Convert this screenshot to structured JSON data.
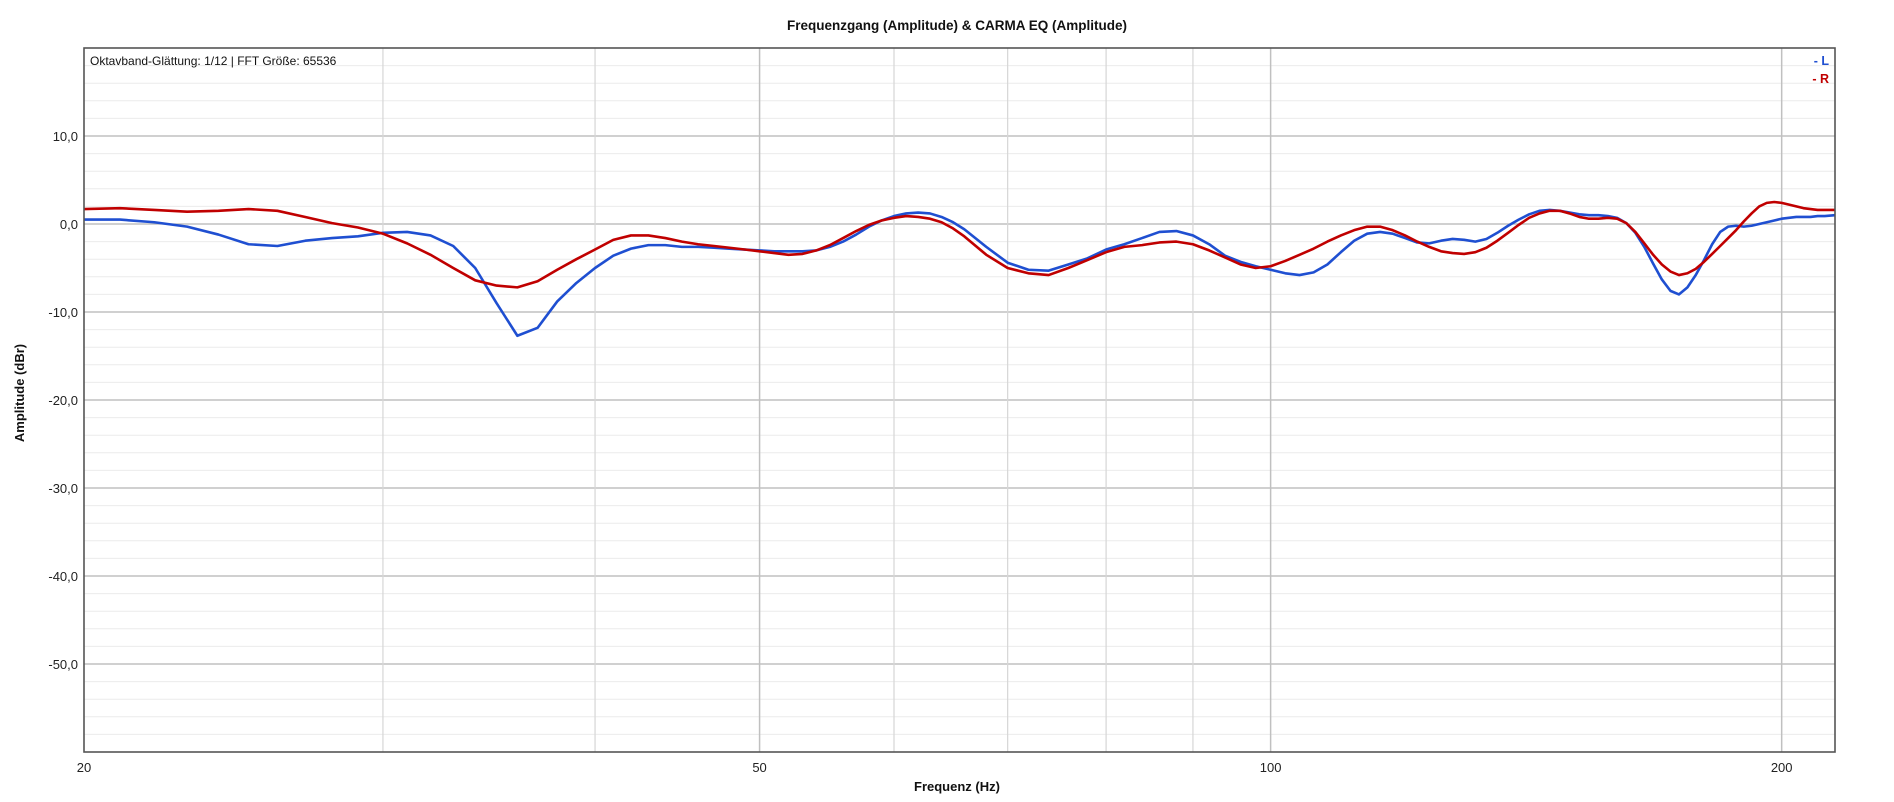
{
  "chart_data": {
    "type": "line",
    "title": "Frequenzgang (Amplitude) & CARMA EQ (Amplitude)",
    "info_text": "Oktavband-Glättung: 1/12 | FFT Größe: 65536",
    "xlabel": "Frequenz (Hz)",
    "ylabel": "Amplitude (dBr)",
    "x_scale": "log",
    "xlim": [
      20,
      215
    ],
    "ylim": [
      -60,
      20
    ],
    "x_ticks": [
      {
        "value": 20,
        "label": "20"
      },
      {
        "value": 50,
        "label": "50"
      },
      {
        "value": 100,
        "label": "100"
      },
      {
        "value": 200,
        "label": "200"
      }
    ],
    "y_ticks": [
      {
        "value": 10,
        "label": "10,0"
      },
      {
        "value": 0,
        "label": "0,0"
      },
      {
        "value": -10,
        "label": "-10,0"
      },
      {
        "value": -20,
        "label": "-20,0"
      },
      {
        "value": -30,
        "label": "-30,0"
      },
      {
        "value": -40,
        "label": "-40,0"
      },
      {
        "value": -50,
        "label": "-50,0"
      }
    ],
    "grid": true,
    "legend_position": "top-right",
    "series": [
      {
        "name": "L",
        "legend_label": "- L",
        "color": "#1f4fd1",
        "x": [
          20,
          21,
          22,
          23,
          24,
          25,
          26,
          27,
          28,
          29,
          30,
          31,
          32,
          33,
          34,
          35,
          36,
          37,
          38,
          39,
          40,
          41,
          42,
          43,
          44,
          45,
          46,
          47,
          48,
          49,
          50,
          51,
          52,
          53,
          54,
          55,
          56,
          57,
          58,
          59,
          60,
          61,
          62,
          63,
          64,
          65,
          66,
          68,
          70,
          72,
          74,
          76,
          78,
          80,
          82,
          84,
          86,
          88,
          90,
          92,
          94,
          96,
          98,
          100,
          102,
          104,
          106,
          108,
          110,
          112,
          114,
          116,
          118,
          120,
          122,
          124,
          126,
          128,
          130,
          132,
          134,
          136,
          138,
          140,
          142,
          144,
          146,
          148,
          150,
          152,
          154,
          156,
          158,
          160,
          162,
          164,
          166,
          168,
          170,
          172,
          174,
          176,
          178,
          180,
          182,
          184,
          186,
          188,
          190,
          192,
          194,
          196,
          198,
          200,
          202,
          204,
          206,
          208,
          210,
          212,
          215
        ],
        "values": [
          0.5,
          0.5,
          0.2,
          -0.3,
          -1.2,
          -2.3,
          -2.5,
          -1.9,
          -1.6,
          -1.4,
          -1.0,
          -0.9,
          -1.3,
          -2.5,
          -5.0,
          -9.0,
          -12.7,
          -11.8,
          -8.8,
          -6.7,
          -5.0,
          -3.6,
          -2.8,
          -2.4,
          -2.4,
          -2.6,
          -2.6,
          -2.7,
          -2.8,
          -2.9,
          -3.0,
          -3.1,
          -3.1,
          -3.1,
          -3.0,
          -2.6,
          -2.0,
          -1.2,
          -0.3,
          0.4,
          0.9,
          1.2,
          1.3,
          1.2,
          0.8,
          0.2,
          -0.6,
          -2.6,
          -4.4,
          -5.2,
          -5.3,
          -4.6,
          -3.9,
          -2.9,
          -2.3,
          -1.6,
          -0.9,
          -0.8,
          -1.3,
          -2.3,
          -3.6,
          -4.3,
          -4.8,
          -5.2,
          -5.6,
          -5.8,
          -5.5,
          -4.6,
          -3.2,
          -1.9,
          -1.1,
          -0.9,
          -1.1,
          -1.6,
          -2.1,
          -2.2,
          -1.9,
          -1.7,
          -1.8,
          -2.0,
          -1.7,
          -1.0,
          -0.2,
          0.5,
          1.1,
          1.5,
          1.6,
          1.5,
          1.3,
          1.1,
          1.0,
          1.0,
          0.9,
          0.7,
          0.1,
          -1.0,
          -2.6,
          -4.5,
          -6.3,
          -7.6,
          -8.0,
          -7.2,
          -5.8,
          -4.1,
          -2.3,
          -0.9,
          -0.3,
          -0.2,
          -0.3,
          -0.2,
          0.0,
          0.2,
          0.4,
          0.6,
          0.7,
          0.8,
          0.8,
          0.8,
          0.9,
          0.9,
          1.0
        ]
      },
      {
        "name": "R",
        "legend_label": "- R",
        "color": "#c00000",
        "x": [
          20,
          21,
          22,
          23,
          24,
          25,
          26,
          27,
          28,
          29,
          30,
          31,
          32,
          33,
          34,
          35,
          36,
          37,
          38,
          39,
          40,
          41,
          42,
          43,
          44,
          45,
          46,
          47,
          48,
          49,
          50,
          51,
          52,
          53,
          54,
          55,
          56,
          57,
          58,
          59,
          60,
          61,
          62,
          63,
          64,
          65,
          66,
          68,
          70,
          72,
          74,
          76,
          78,
          80,
          82,
          84,
          86,
          88,
          90,
          92,
          94,
          96,
          98,
          100,
          102,
          104,
          106,
          108,
          110,
          112,
          114,
          116,
          118,
          120,
          122,
          124,
          126,
          128,
          130,
          132,
          134,
          136,
          138,
          140,
          142,
          144,
          146,
          148,
          150,
          152,
          154,
          156,
          158,
          160,
          162,
          164,
          166,
          168,
          170,
          172,
          174,
          176,
          178,
          180,
          182,
          184,
          186,
          188,
          190,
          192,
          194,
          196,
          198,
          200,
          202,
          204,
          206,
          208,
          210,
          212,
          215
        ],
        "values": [
          1.7,
          1.8,
          1.6,
          1.4,
          1.5,
          1.7,
          1.5,
          0.8,
          0.1,
          -0.4,
          -1.1,
          -2.2,
          -3.5,
          -5.0,
          -6.4,
          -7.0,
          -7.2,
          -6.5,
          -5.2,
          -4.0,
          -2.9,
          -1.8,
          -1.3,
          -1.3,
          -1.6,
          -2.0,
          -2.3,
          -2.5,
          -2.7,
          -2.9,
          -3.1,
          -3.3,
          -3.5,
          -3.4,
          -3.0,
          -2.4,
          -1.6,
          -0.8,
          -0.1,
          0.4,
          0.7,
          0.9,
          0.8,
          0.6,
          0.2,
          -0.5,
          -1.4,
          -3.5,
          -5.0,
          -5.6,
          -5.8,
          -5.0,
          -4.1,
          -3.2,
          -2.6,
          -2.4,
          -2.1,
          -2.0,
          -2.3,
          -3.0,
          -3.8,
          -4.6,
          -5.0,
          -4.8,
          -4.2,
          -3.5,
          -2.8,
          -2.0,
          -1.3,
          -0.7,
          -0.3,
          -0.3,
          -0.7,
          -1.3,
          -2.0,
          -2.6,
          -3.1,
          -3.3,
          -3.4,
          -3.2,
          -2.7,
          -1.9,
          -1.0,
          -0.1,
          0.7,
          1.2,
          1.5,
          1.5,
          1.2,
          0.8,
          0.6,
          0.6,
          0.7,
          0.6,
          0.1,
          -0.9,
          -2.2,
          -3.5,
          -4.6,
          -5.4,
          -5.8,
          -5.6,
          -5.1,
          -4.3,
          -3.4,
          -2.5,
          -1.6,
          -0.7,
          0.3,
          1.2,
          2.0,
          2.4,
          2.5,
          2.4,
          2.2,
          2.0,
          1.8,
          1.7,
          1.6,
          1.6,
          1.6
        ]
      }
    ]
  }
}
